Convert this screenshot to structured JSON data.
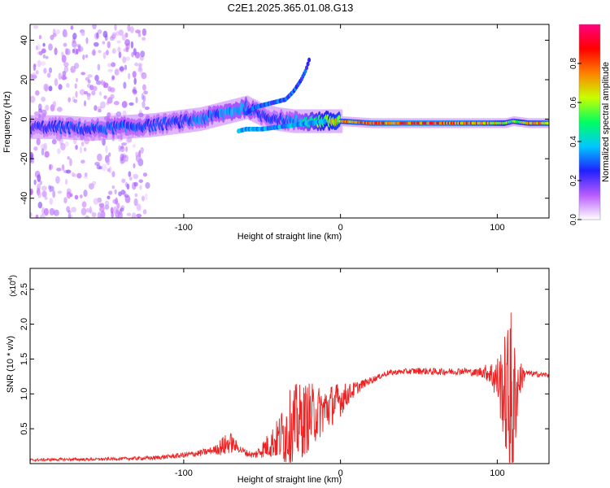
{
  "title": "C2E1.2025.365.01.08.G13",
  "chart_data": [
    {
      "type": "heatmap",
      "name": "spectrogram",
      "xlabel": "Height of straight line (km)",
      "ylabel": "Frequency (Hz)",
      "xlim": [
        -198,
        133
      ],
      "ylim": [
        -50,
        48
      ],
      "xticks": [
        -100,
        0,
        100
      ],
      "xtick_labels": [
        "-100",
        "0",
        "100"
      ],
      "yticks": [
        -40,
        -20,
        0,
        20,
        40
      ],
      "ytick_labels": [
        "-40",
        "-20",
        "0",
        "20",
        "40"
      ],
      "colorbar": {
        "label": "Normalized spectral amplitude",
        "range": [
          0,
          1
        ],
        "ticks": [
          0.0,
          0.2,
          0.4,
          0.6,
          0.8
        ],
        "tick_labels": [
          "0.0",
          "0.2",
          "0.4",
          "0.6",
          "0.8"
        ],
        "colors": [
          "#ffffff",
          "#b85cff",
          "#2020ff",
          "#00c8ff",
          "#00ff60",
          "#c8ff00",
          "#ff8000",
          "#ff0000",
          "#ff0080"
        ]
      },
      "ridge": {
        "x": [
          -198,
          -180,
          -160,
          -140,
          -120,
          -100,
          -90,
          -80,
          -70,
          -60,
          -55,
          -50,
          -40,
          -30,
          -20,
          -10,
          0,
          20,
          40,
          60,
          80,
          95,
          105,
          110,
          120,
          133
        ],
        "y": [
          -4,
          -4,
          -5,
          -4,
          -3,
          -1,
          0,
          2,
          4,
          6,
          4,
          2,
          0,
          -1,
          -1,
          -1,
          -1,
          -2,
          -2,
          -2,
          -2,
          -2,
          -2,
          -1,
          -2,
          -2
        ],
        "amplitude": [
          0.25,
          0.3,
          0.3,
          0.35,
          0.3,
          0.3,
          0.35,
          0.35,
          0.4,
          0.4,
          0.35,
          0.3,
          0.3,
          0.35,
          0.5,
          0.7,
          0.8,
          0.9,
          0.95,
          0.95,
          0.9,
          0.85,
          0.7,
          0.6,
          0.8,
          0.85
        ]
      },
      "branch": {
        "x": [
          -60,
          -55,
          -50,
          -45,
          -40,
          -35,
          -30,
          -25,
          -22,
          -20
        ],
        "y": [
          3,
          6,
          7,
          8,
          9,
          10,
          14,
          20,
          25,
          30
        ]
      },
      "lower_track": {
        "x": [
          -65,
          -60,
          -50,
          -40,
          -30,
          -20,
          -10
        ],
        "y": [
          -6,
          -5,
          -5,
          -4,
          -3,
          -2,
          -1
        ]
      }
    },
    {
      "type": "line",
      "name": "snr",
      "xlabel": "Height of straight line (km)",
      "ylabel": "SNR (10 * v/v)",
      "yscale_label": "(x10",
      "yscale_exponent": "4",
      "xlim": [
        -198,
        133
      ],
      "ylim": [
        0,
        2.8
      ],
      "xticks": [
        -100,
        0,
        100
      ],
      "xtick_labels": [
        "-100",
        "0",
        "100"
      ],
      "yticks": [
        0.5,
        1.0,
        1.5,
        2.0,
        2.5
      ],
      "ytick_labels": [
        "0.5",
        "1.0",
        "1.5",
        "2.0",
        "2.5"
      ],
      "color": "#ee2222",
      "envelope": {
        "x": [
          -198,
          -180,
          -160,
          -140,
          -120,
          -110,
          -100,
          -90,
          -85,
          -80,
          -75,
          -70,
          -65,
          -60,
          -55,
          -50,
          -45,
          -40,
          -35,
          -30,
          -25,
          -20,
          -15,
          -10,
          -5,
          0,
          5,
          10,
          15,
          20,
          25,
          30,
          40,
          50,
          60,
          70,
          80,
          85,
          90,
          95,
          100,
          103,
          106,
          108,
          110,
          112,
          114,
          118,
          125,
          133
        ],
        "mean": [
          0.05,
          0.06,
          0.06,
          0.07,
          0.08,
          0.1,
          0.12,
          0.15,
          0.17,
          0.2,
          0.25,
          0.3,
          0.22,
          0.15,
          0.12,
          0.2,
          0.28,
          0.35,
          0.45,
          0.55,
          0.6,
          0.68,
          0.72,
          0.78,
          0.85,
          0.92,
          1.0,
          1.08,
          1.15,
          1.2,
          1.25,
          1.3,
          1.32,
          1.33,
          1.32,
          1.32,
          1.33,
          1.3,
          1.32,
          1.3,
          1.2,
          1.1,
          0.95,
          0.9,
          0.8,
          1.0,
          1.2,
          1.3,
          1.28,
          1.27
        ],
        "noise": [
          0.02,
          0.02,
          0.02,
          0.02,
          0.03,
          0.03,
          0.04,
          0.05,
          0.05,
          0.06,
          0.15,
          0.15,
          0.06,
          0.05,
          0.05,
          0.12,
          0.2,
          0.3,
          0.5,
          0.6,
          0.55,
          0.5,
          0.4,
          0.35,
          0.3,
          0.25,
          0.15,
          0.1,
          0.06,
          0.05,
          0.04,
          0.04,
          0.04,
          0.05,
          0.05,
          0.05,
          0.05,
          0.05,
          0.08,
          0.15,
          0.35,
          0.6,
          1.0,
          1.3,
          1.5,
          0.6,
          0.3,
          0.05,
          0.04,
          0.04
        ]
      }
    }
  ]
}
